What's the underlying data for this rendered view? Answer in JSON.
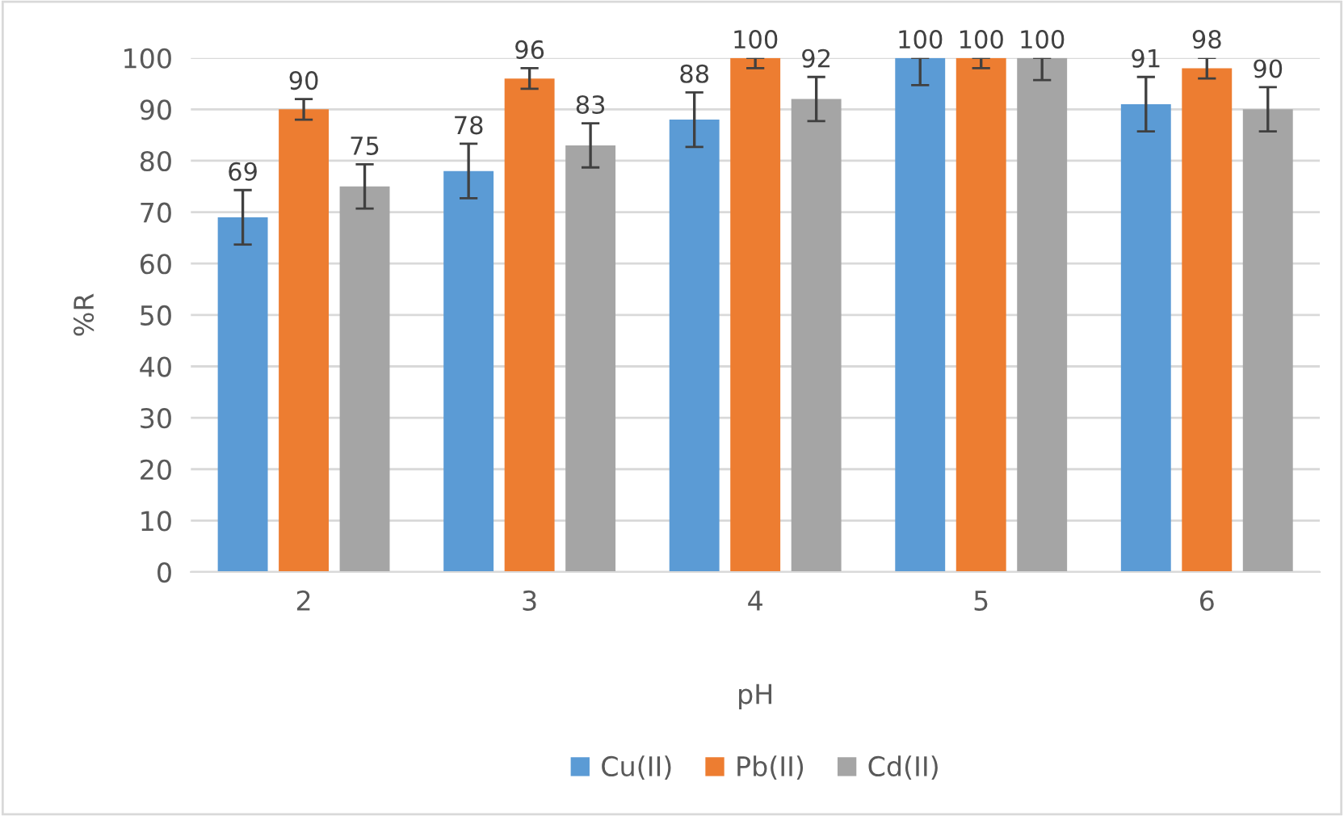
{
  "chart_data": {
    "type": "bar",
    "xlabel": "pH",
    "ylabel": "%R",
    "categories": [
      "2",
      "3",
      "4",
      "5",
      "6"
    ],
    "series": [
      {
        "name": "Cu(II)",
        "color": "#5b9bd5",
        "values": [
          69,
          78,
          88,
          100,
          91
        ],
        "errors": [
          5.3,
          5.3,
          5.3,
          [
            94.7,
            100
          ],
          5.3
        ]
      },
      {
        "name": "Pb(II)",
        "color": "#ed7d31",
        "values": [
          90,
          96,
          100,
          100,
          98
        ],
        "errors": [
          2,
          2,
          [
            98,
            100
          ],
          [
            98,
            100
          ],
          2
        ]
      },
      {
        "name": "Cd(II)",
        "color": "#a5a5a5",
        "values": [
          75,
          83,
          92,
          100,
          90
        ],
        "errors": [
          4.3,
          4.3,
          4.3,
          [
            95.7,
            100
          ],
          4.3
        ]
      }
    ],
    "ylim": [
      0,
      100
    ],
    "yticks": [
      0,
      10,
      20,
      30,
      40,
      50,
      60,
      70,
      80,
      90,
      100
    ],
    "grid": "y",
    "legend": "bottom",
    "data_labels": true
  }
}
